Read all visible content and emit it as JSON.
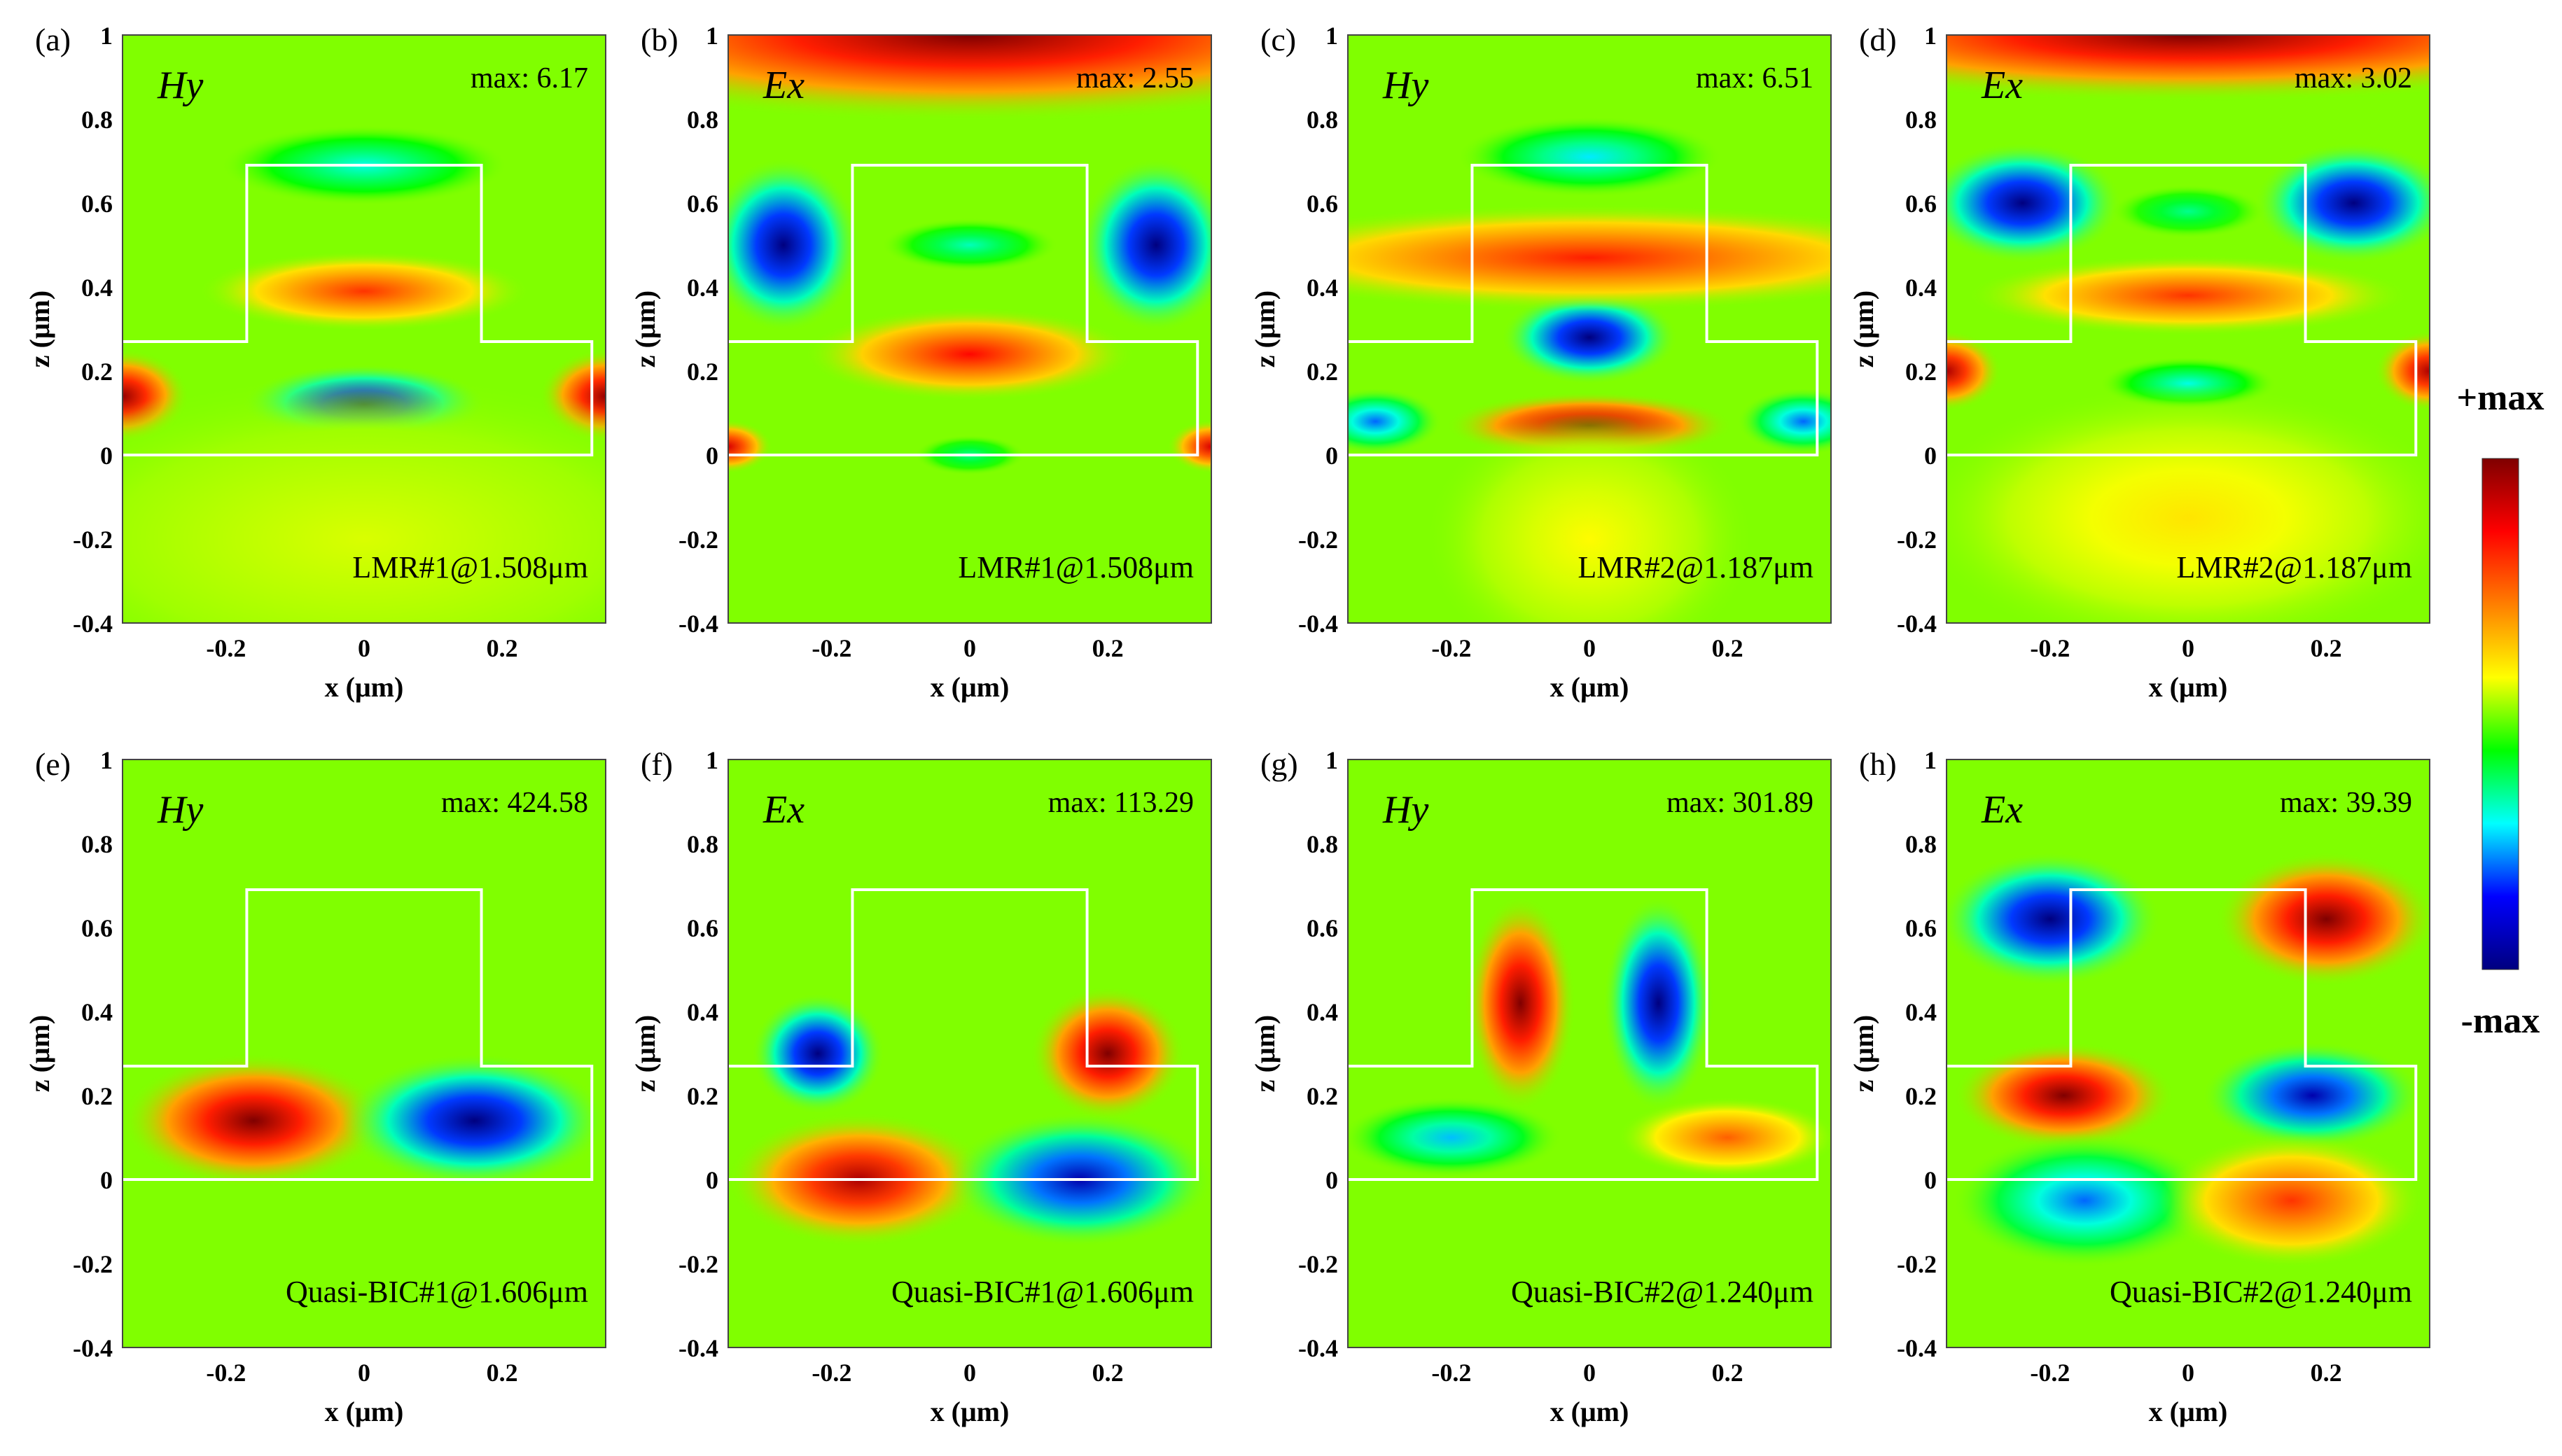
{
  "colorbar": {
    "top_label": "+max",
    "bottom_label": "-max",
    "colormap": [
      "#00007f",
      "#0000ff",
      "#00ffff",
      "#00ff00",
      "#ffff00",
      "#ff7f00",
      "#ff0000",
      "#7f0000"
    ]
  },
  "chart_data": [
    {
      "type": "heatmap",
      "panel": "(a)",
      "field": "Hy",
      "max": "max: 6.17",
      "mode": "LMR#1@1.508μm",
      "xlabel": "x (μm)",
      "ylabel": "z (μm)",
      "xlim": [
        -0.35,
        0.35
      ],
      "ylim": [
        -0.4,
        1.0
      ],
      "xticks": [
        "-0.2",
        "0",
        "0.2"
      ],
      "yticks": [
        "1",
        "0.8",
        "0.6",
        "0.4",
        "0.2",
        "0",
        "-0.2",
        "-0.4"
      ],
      "blobs": [
        [
          0,
          0.12,
          0.11,
          0.06,
          -1
        ],
        [
          0,
          0.39,
          0.15,
          0.06,
          0.6
        ],
        [
          0,
          0.69,
          0.13,
          0.06,
          -0.4
        ],
        [
          -0.35,
          0.14,
          0.06,
          0.07,
          0.95
        ],
        [
          0.35,
          0.14,
          0.06,
          0.07,
          0.95
        ],
        [
          0,
          -0.2,
          0.35,
          0.25,
          0.1
        ]
      ]
    },
    {
      "type": "heatmap",
      "panel": "(b)",
      "field": "Ex",
      "max": "max: 2.55",
      "mode": "LMR#1@1.508μm",
      "xlabel": "x (μm)",
      "ylabel": "z (μm)",
      "xlim": [
        -0.35,
        0.35
      ],
      "ylim": [
        -0.4,
        1.0
      ],
      "xticks": [
        "-0.2",
        "0",
        "0.2"
      ],
      "yticks": [
        "1",
        "0.8",
        "0.6",
        "0.4",
        "0.2",
        "0",
        "-0.2",
        "-0.4"
      ],
      "blobs": [
        [
          0,
          1.0,
          0.45,
          0.13,
          1
        ],
        [
          -0.27,
          0.5,
          0.07,
          0.13,
          -1
        ],
        [
          0.27,
          0.5,
          0.07,
          0.13,
          -1
        ],
        [
          0,
          0.24,
          0.15,
          0.07,
          0.7
        ],
        [
          0,
          0.5,
          0.08,
          0.04,
          -0.35
        ],
        [
          -0.35,
          0.02,
          0.04,
          0.04,
          0.8
        ],
        [
          0.35,
          0.02,
          0.04,
          0.04,
          0.8
        ],
        [
          0,
          0.0,
          0.05,
          0.03,
          -0.3
        ]
      ]
    },
    {
      "type": "heatmap",
      "panel": "(c)",
      "field": "Hy",
      "max": "max: 6.51",
      "mode": "LMR#2@1.187μm",
      "xlabel": "x (μm)",
      "ylabel": "z (μm)",
      "xlim": [
        -0.35,
        0.35
      ],
      "ylim": [
        -0.4,
        1.0
      ],
      "xticks": [
        "-0.2",
        "0",
        "0.2"
      ],
      "yticks": [
        "1",
        "0.8",
        "0.6",
        "0.4",
        "0.2",
        "0",
        "-0.2",
        "-0.4"
      ],
      "blobs": [
        [
          0,
          0.28,
          0.08,
          0.07,
          -1
        ],
        [
          0,
          0.07,
          0.13,
          0.05,
          1
        ],
        [
          0,
          0.47,
          0.35,
          0.08,
          0.65
        ],
        [
          0,
          0.71,
          0.12,
          0.06,
          -0.45
        ],
        [
          -0.31,
          0.08,
          0.06,
          0.05,
          -0.6
        ],
        [
          0.31,
          0.08,
          0.06,
          0.05,
          -0.6
        ],
        [
          0,
          -0.2,
          0.15,
          0.2,
          0.15
        ]
      ]
    },
    {
      "type": "heatmap",
      "panel": "(d)",
      "field": "Ex",
      "max": "max: 3.02",
      "mode": "LMR#2@1.187μm",
      "xlabel": "x (μm)",
      "ylabel": "z (μm)",
      "xlim": [
        -0.35,
        0.35
      ],
      "ylim": [
        -0.4,
        1.0
      ],
      "xticks": [
        "-0.2",
        "0",
        "0.2"
      ],
      "yticks": [
        "1",
        "0.8",
        "0.6",
        "0.4",
        "0.2",
        "0",
        "-0.2",
        "-0.4"
      ],
      "blobs": [
        [
          0,
          1.0,
          0.45,
          0.1,
          1
        ],
        [
          -0.24,
          0.6,
          0.09,
          0.09,
          -1
        ],
        [
          0.24,
          0.6,
          0.09,
          0.09,
          -1
        ],
        [
          0,
          0.38,
          0.2,
          0.06,
          0.6
        ],
        [
          0,
          0.17,
          0.08,
          0.04,
          -0.4
        ],
        [
          0,
          0.58,
          0.07,
          0.04,
          -0.3
        ],
        [
          -0.35,
          0.2,
          0.05,
          0.06,
          0.9
        ],
        [
          0.35,
          0.2,
          0.05,
          0.06,
          0.9
        ],
        [
          0,
          -0.15,
          0.25,
          0.2,
          0.2
        ]
      ]
    },
    {
      "type": "heatmap",
      "panel": "(e)",
      "field": "Hy",
      "max": "max: 424.58",
      "mode": "Quasi-BIC#1@1.606μm",
      "xlabel": "x (μm)",
      "ylabel": "z (μm)",
      "xlim": [
        -0.35,
        0.35
      ],
      "ylim": [
        -0.4,
        1.0
      ],
      "xticks": [
        "-0.2",
        "0",
        "0.2"
      ],
      "yticks": [
        "1",
        "0.8",
        "0.6",
        "0.4",
        "0.2",
        "0",
        "-0.2",
        "-0.4"
      ],
      "blobs": [
        [
          -0.16,
          0.14,
          0.12,
          0.1,
          1
        ],
        [
          0.16,
          0.14,
          0.12,
          0.1,
          -1
        ]
      ]
    },
    {
      "type": "heatmap",
      "panel": "(f)",
      "field": "Ex",
      "max": "max: 113.29",
      "mode": "Quasi-BIC#1@1.606μm",
      "xlabel": "x (μm)",
      "ylabel": "z (μm)",
      "xlim": [
        -0.35,
        0.35
      ],
      "ylim": [
        -0.4,
        1.0
      ],
      "xticks": [
        "-0.2",
        "0",
        "0.2"
      ],
      "yticks": [
        "1",
        "0.8",
        "0.6",
        "0.4",
        "0.2",
        "0",
        "-0.2",
        "-0.4"
      ],
      "blobs": [
        [
          -0.22,
          0.3,
          0.06,
          0.09,
          -1
        ],
        [
          0.2,
          0.3,
          0.07,
          0.1,
          1
        ],
        [
          -0.16,
          0.0,
          0.12,
          0.1,
          0.9
        ],
        [
          0.16,
          0.0,
          0.12,
          0.1,
          -0.9
        ]
      ]
    },
    {
      "type": "heatmap",
      "panel": "(g)",
      "field": "Hy",
      "max": "max: 301.89",
      "mode": "Quasi-BIC#2@1.240μm",
      "xlabel": "x (μm)",
      "ylabel": "z (μm)",
      "xlim": [
        -0.35,
        0.35
      ],
      "ylim": [
        -0.4,
        1.0
      ],
      "xticks": [
        "-0.2",
        "0",
        "0.2"
      ],
      "yticks": [
        "1",
        "0.8",
        "0.6",
        "0.4",
        "0.2",
        "0",
        "-0.2",
        "-0.4"
      ],
      "blobs": [
        [
          -0.1,
          0.42,
          0.05,
          0.16,
          1
        ],
        [
          0.1,
          0.42,
          0.05,
          0.16,
          -1
        ],
        [
          -0.2,
          0.1,
          0.1,
          0.06,
          -0.5
        ],
        [
          0.2,
          0.1,
          0.1,
          0.06,
          0.5
        ]
      ]
    },
    {
      "type": "heatmap",
      "panel": "(h)",
      "field": "Ex",
      "max": "max: 39.39",
      "mode": "Quasi-BIC#2@1.240μm",
      "xlabel": "x (μm)",
      "ylabel": "z (μm)",
      "xlim": [
        -0.35,
        0.35
      ],
      "ylim": [
        -0.4,
        1.0
      ],
      "xticks": [
        "-0.2",
        "0",
        "0.2"
      ],
      "yticks": [
        "1",
        "0.8",
        "0.6",
        "0.4",
        "0.2",
        "0",
        "-0.2",
        "-0.4"
      ],
      "blobs": [
        [
          -0.2,
          0.62,
          0.1,
          0.1,
          -1
        ],
        [
          0.2,
          0.62,
          0.1,
          0.1,
          1
        ],
        [
          -0.18,
          0.2,
          0.1,
          0.08,
          1
        ],
        [
          0.18,
          0.2,
          0.1,
          0.08,
          -0.9
        ],
        [
          -0.15,
          -0.05,
          0.12,
          0.1,
          -0.6
        ],
        [
          0.15,
          -0.05,
          0.12,
          0.1,
          0.6
        ]
      ]
    }
  ]
}
